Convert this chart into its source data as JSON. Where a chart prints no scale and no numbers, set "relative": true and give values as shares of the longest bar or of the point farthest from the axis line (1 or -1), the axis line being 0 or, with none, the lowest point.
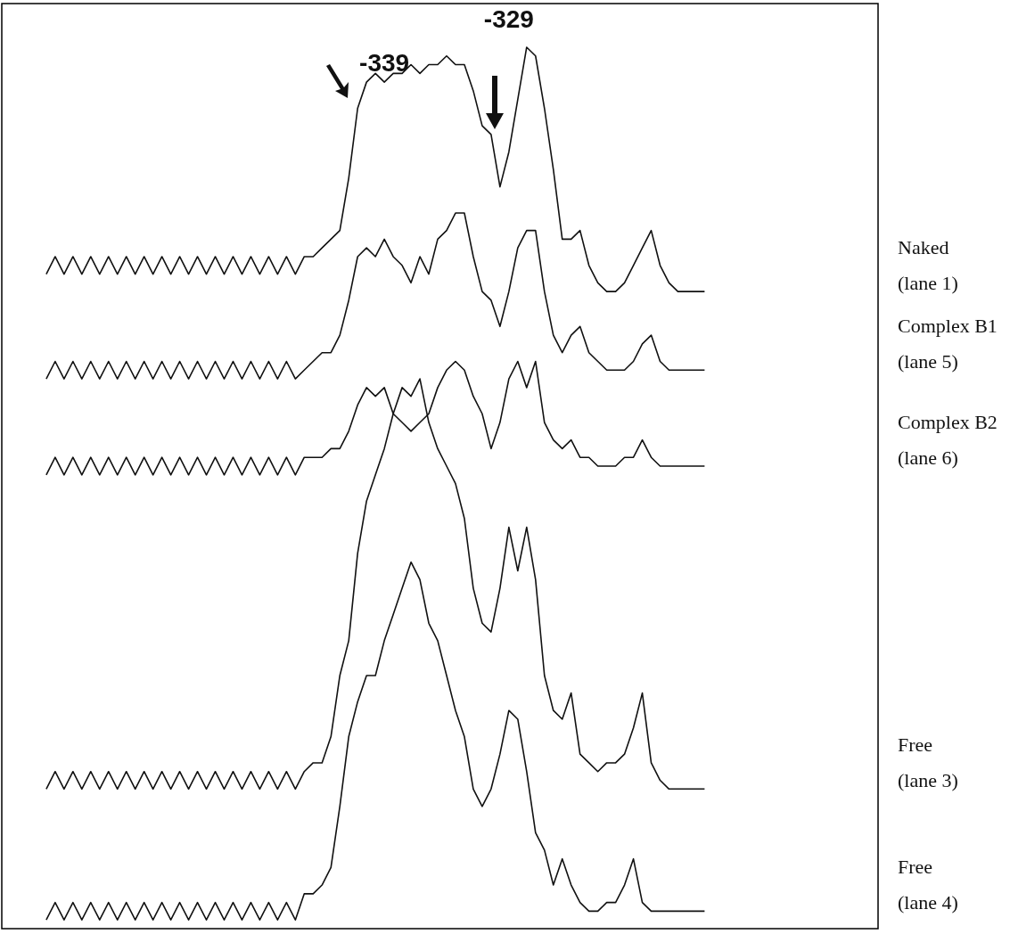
{
  "chart_data": {
    "type": "line",
    "relative": true,
    "legend": false,
    "marker": "none",
    "annotations": [
      "-339",
      "-329"
    ],
    "categories": [
      null,
      null,
      null,
      null,
      null,
      null,
      null,
      null,
      null,
      null,
      null,
      null,
      null,
      null,
      null,
      null,
      null,
      null,
      null,
      null,
      null,
      null,
      null,
      null,
      null,
      null,
      null,
      null,
      null,
      null,
      null,
      null,
      null,
      null,
      null,
      null,
      null,
      null,
      null,
      null,
      null,
      null,
      null,
      null,
      null,
      null,
      null,
      null,
      null,
      null,
      null,
      null,
      null,
      null,
      null,
      null,
      null,
      null,
      null,
      null,
      null,
      null,
      null,
      null,
      null,
      null,
      null,
      null,
      null,
      null,
      null,
      null,
      null,
      null,
      null
    ],
    "series": [
      {
        "name": "Naked (lane 1)",
        "color": "#111111",
        "values": [
          0.74,
          0.76,
          0.74,
          0.76,
          0.74,
          0.76,
          0.74,
          0.76,
          0.74,
          0.76,
          0.74,
          0.76,
          0.74,
          0.76,
          0.74,
          0.76,
          0.74,
          0.76,
          0.74,
          0.76,
          0.74,
          0.76,
          0.74,
          0.76,
          0.74,
          0.76,
          0.74,
          0.76,
          0.74,
          0.76,
          0.76,
          0.77,
          0.78,
          0.79,
          0.85,
          0.93,
          0.96,
          0.97,
          0.96,
          0.97,
          0.97,
          0.98,
          0.97,
          0.98,
          0.98,
          0.99,
          0.98,
          0.98,
          0.95,
          0.91,
          0.9,
          0.84,
          0.88,
          0.94,
          1.0,
          0.99,
          0.93,
          0.86,
          0.78,
          0.78,
          0.79,
          0.75,
          0.73,
          0.72,
          0.72,
          0.73,
          0.75,
          0.77,
          0.79,
          0.75,
          0.73,
          0.72,
          0.72,
          0.72,
          0.72
        ]
      },
      {
        "name": "Complex B1 (lane 5)",
        "color": "#111111",
        "values": [
          0.62,
          0.64,
          0.62,
          0.64,
          0.62,
          0.64,
          0.62,
          0.64,
          0.62,
          0.64,
          0.62,
          0.64,
          0.62,
          0.64,
          0.62,
          0.64,
          0.62,
          0.64,
          0.62,
          0.64,
          0.62,
          0.64,
          0.62,
          0.64,
          0.62,
          0.64,
          0.62,
          0.64,
          0.62,
          0.63,
          0.64,
          0.65,
          0.65,
          0.67,
          0.71,
          0.76,
          0.77,
          0.76,
          0.78,
          0.76,
          0.75,
          0.73,
          0.76,
          0.74,
          0.78,
          0.79,
          0.81,
          0.81,
          0.76,
          0.72,
          0.71,
          0.68,
          0.72,
          0.77,
          0.79,
          0.79,
          0.72,
          0.67,
          0.65,
          0.67,
          0.68,
          0.65,
          0.64,
          0.63,
          0.63,
          0.63,
          0.64,
          0.66,
          0.67,
          0.64,
          0.63,
          0.63,
          0.63,
          0.63,
          0.63
        ]
      },
      {
        "name": "Complex B2 (lane 6)",
        "color": "#111111",
        "values": [
          0.51,
          0.53,
          0.51,
          0.53,
          0.51,
          0.53,
          0.51,
          0.53,
          0.51,
          0.53,
          0.51,
          0.53,
          0.51,
          0.53,
          0.51,
          0.53,
          0.51,
          0.53,
          0.51,
          0.53,
          0.51,
          0.53,
          0.51,
          0.53,
          0.51,
          0.53,
          0.51,
          0.53,
          0.51,
          0.53,
          0.53,
          0.53,
          0.54,
          0.54,
          0.56,
          0.59,
          0.61,
          0.6,
          0.61,
          0.58,
          0.57,
          0.56,
          0.57,
          0.58,
          0.61,
          0.63,
          0.64,
          0.63,
          0.6,
          0.58,
          0.54,
          0.57,
          0.62,
          0.64,
          0.61,
          0.64,
          0.57,
          0.55,
          0.54,
          0.55,
          0.53,
          0.53,
          0.52,
          0.52,
          0.52,
          0.53,
          0.53,
          0.55,
          0.53,
          0.52,
          0.52,
          0.52,
          0.52,
          0.52,
          0.52
        ]
      },
      {
        "name": "Free (lane 3)",
        "color": "#111111",
        "values": [
          0.15,
          0.17,
          0.15,
          0.17,
          0.15,
          0.17,
          0.15,
          0.17,
          0.15,
          0.17,
          0.15,
          0.17,
          0.15,
          0.17,
          0.15,
          0.17,
          0.15,
          0.17,
          0.15,
          0.17,
          0.15,
          0.17,
          0.15,
          0.17,
          0.15,
          0.17,
          0.15,
          0.17,
          0.15,
          0.17,
          0.18,
          0.18,
          0.21,
          0.28,
          0.32,
          0.42,
          0.48,
          0.51,
          0.54,
          0.58,
          0.61,
          0.6,
          0.62,
          0.57,
          0.54,
          0.52,
          0.5,
          0.46,
          0.38,
          0.34,
          0.33,
          0.38,
          0.45,
          0.4,
          0.45,
          0.39,
          0.28,
          0.24,
          0.23,
          0.26,
          0.19,
          0.18,
          0.17,
          0.18,
          0.18,
          0.19,
          0.22,
          0.26,
          0.18,
          0.16,
          0.15,
          0.15,
          0.15,
          0.15,
          0.15
        ]
      },
      {
        "name": "Free (lane 4)",
        "color": "#111111",
        "values": [
          0.0,
          0.02,
          0.0,
          0.02,
          0.0,
          0.02,
          0.0,
          0.02,
          0.0,
          0.02,
          0.0,
          0.02,
          0.0,
          0.02,
          0.0,
          0.02,
          0.0,
          0.02,
          0.0,
          0.02,
          0.0,
          0.02,
          0.0,
          0.02,
          0.0,
          0.02,
          0.0,
          0.02,
          0.0,
          0.03,
          0.03,
          0.04,
          0.06,
          0.13,
          0.21,
          0.25,
          0.28,
          0.28,
          0.32,
          0.35,
          0.38,
          0.41,
          0.39,
          0.34,
          0.32,
          0.28,
          0.24,
          0.21,
          0.15,
          0.13,
          0.15,
          0.19,
          0.24,
          0.23,
          0.17,
          0.1,
          0.08,
          0.04,
          0.07,
          0.04,
          0.02,
          0.01,
          0.01,
          0.02,
          0.02,
          0.04,
          0.07,
          0.02,
          0.01,
          0.01,
          0.01,
          0.01,
          0.01,
          0.01,
          0.01
        ]
      }
    ]
  }
}
